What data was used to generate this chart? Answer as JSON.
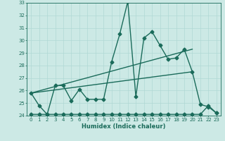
{
  "xlabel": "Humidex (Indice chaleur)",
  "x": [
    0,
    1,
    2,
    3,
    4,
    5,
    6,
    7,
    8,
    9,
    10,
    11,
    12,
    13,
    14,
    15,
    16,
    17,
    18,
    19,
    20,
    21,
    22,
    23
  ],
  "line1": [
    25.8,
    24.8,
    24.1,
    26.4,
    26.4,
    25.2,
    26.1,
    25.3,
    25.3,
    25.3,
    28.3,
    30.5,
    33.1,
    25.5,
    30.2,
    30.7,
    29.6,
    28.5,
    28.6,
    29.3,
    27.5,
    24.9,
    24.7,
    24.2
  ],
  "line2": [
    24.1,
    24.1,
    24.1,
    24.1,
    24.1,
    24.1,
    24.1,
    24.1,
    24.1,
    24.1,
    24.1,
    24.1,
    24.1,
    24.1,
    24.1,
    24.1,
    24.1,
    24.1,
    24.1,
    24.1,
    24.1,
    24.1,
    24.8,
    24.2
  ],
  "line3_x": [
    0,
    20
  ],
  "line3_y": [
    25.8,
    29.3
  ],
  "line4_x": [
    0,
    20
  ],
  "line4_y": [
    25.8,
    27.5
  ],
  "ylim": [
    24,
    33
  ],
  "yticks": [
    24,
    25,
    26,
    27,
    28,
    29,
    30,
    31,
    32,
    33
  ],
  "xlim": [
    -0.5,
    23.5
  ],
  "bg_color": "#cce9e5",
  "line_color": "#1a6b5a",
  "grid_color": "#b0d8d4",
  "markersize": 2.5,
  "linewidth": 1.0
}
